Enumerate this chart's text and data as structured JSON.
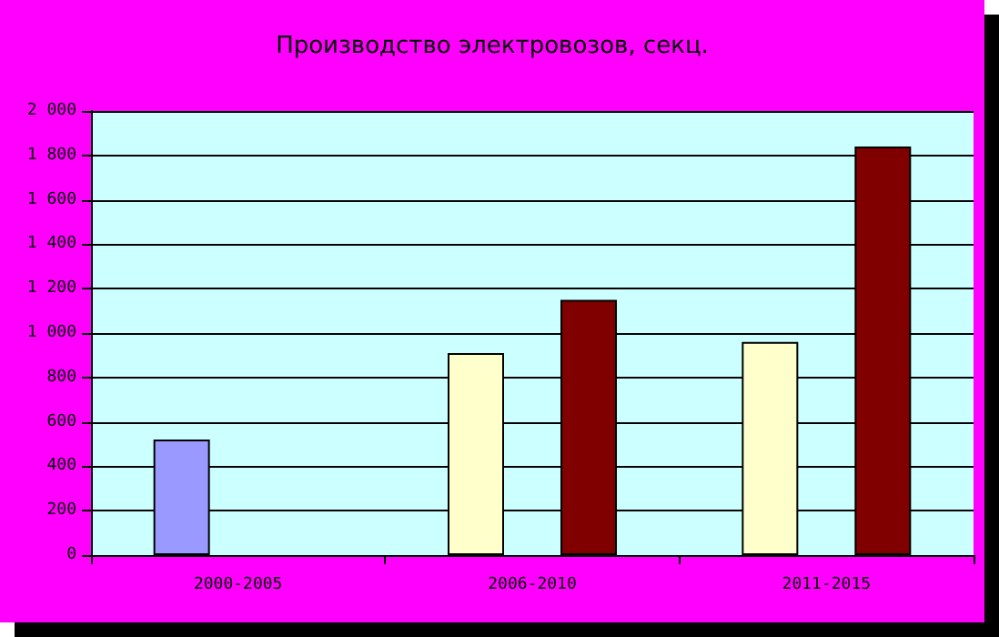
{
  "chart_data": {
    "type": "bar",
    "title": "Производство электровозов, секц.",
    "categories": [
      "2000-2005",
      "2006-2010",
      "2011-2015"
    ],
    "series": [
      {
        "colors": [
          "#9999ff",
          "#ffffcc",
          "#ffffcc"
        ],
        "values": [
          520,
          910,
          960
        ]
      },
      {
        "color": "#800000",
        "values": [
          null,
          1150,
          1840
        ]
      }
    ],
    "ylim": [
      0,
      2000
    ],
    "yticks": [
      0,
      200,
      400,
      600,
      800,
      {
        "value": 1000,
        "label": "1 000"
      },
      {
        "value": 1200,
        "label": "1 200"
      },
      {
        "value": 1400,
        "label": "1 400"
      },
      {
        "value": 1600,
        "label": "1 600"
      },
      {
        "value": 1800,
        "label": "1 800"
      },
      {
        "value": 2000,
        "label": "2 000"
      }
    ],
    "grid": "y"
  }
}
